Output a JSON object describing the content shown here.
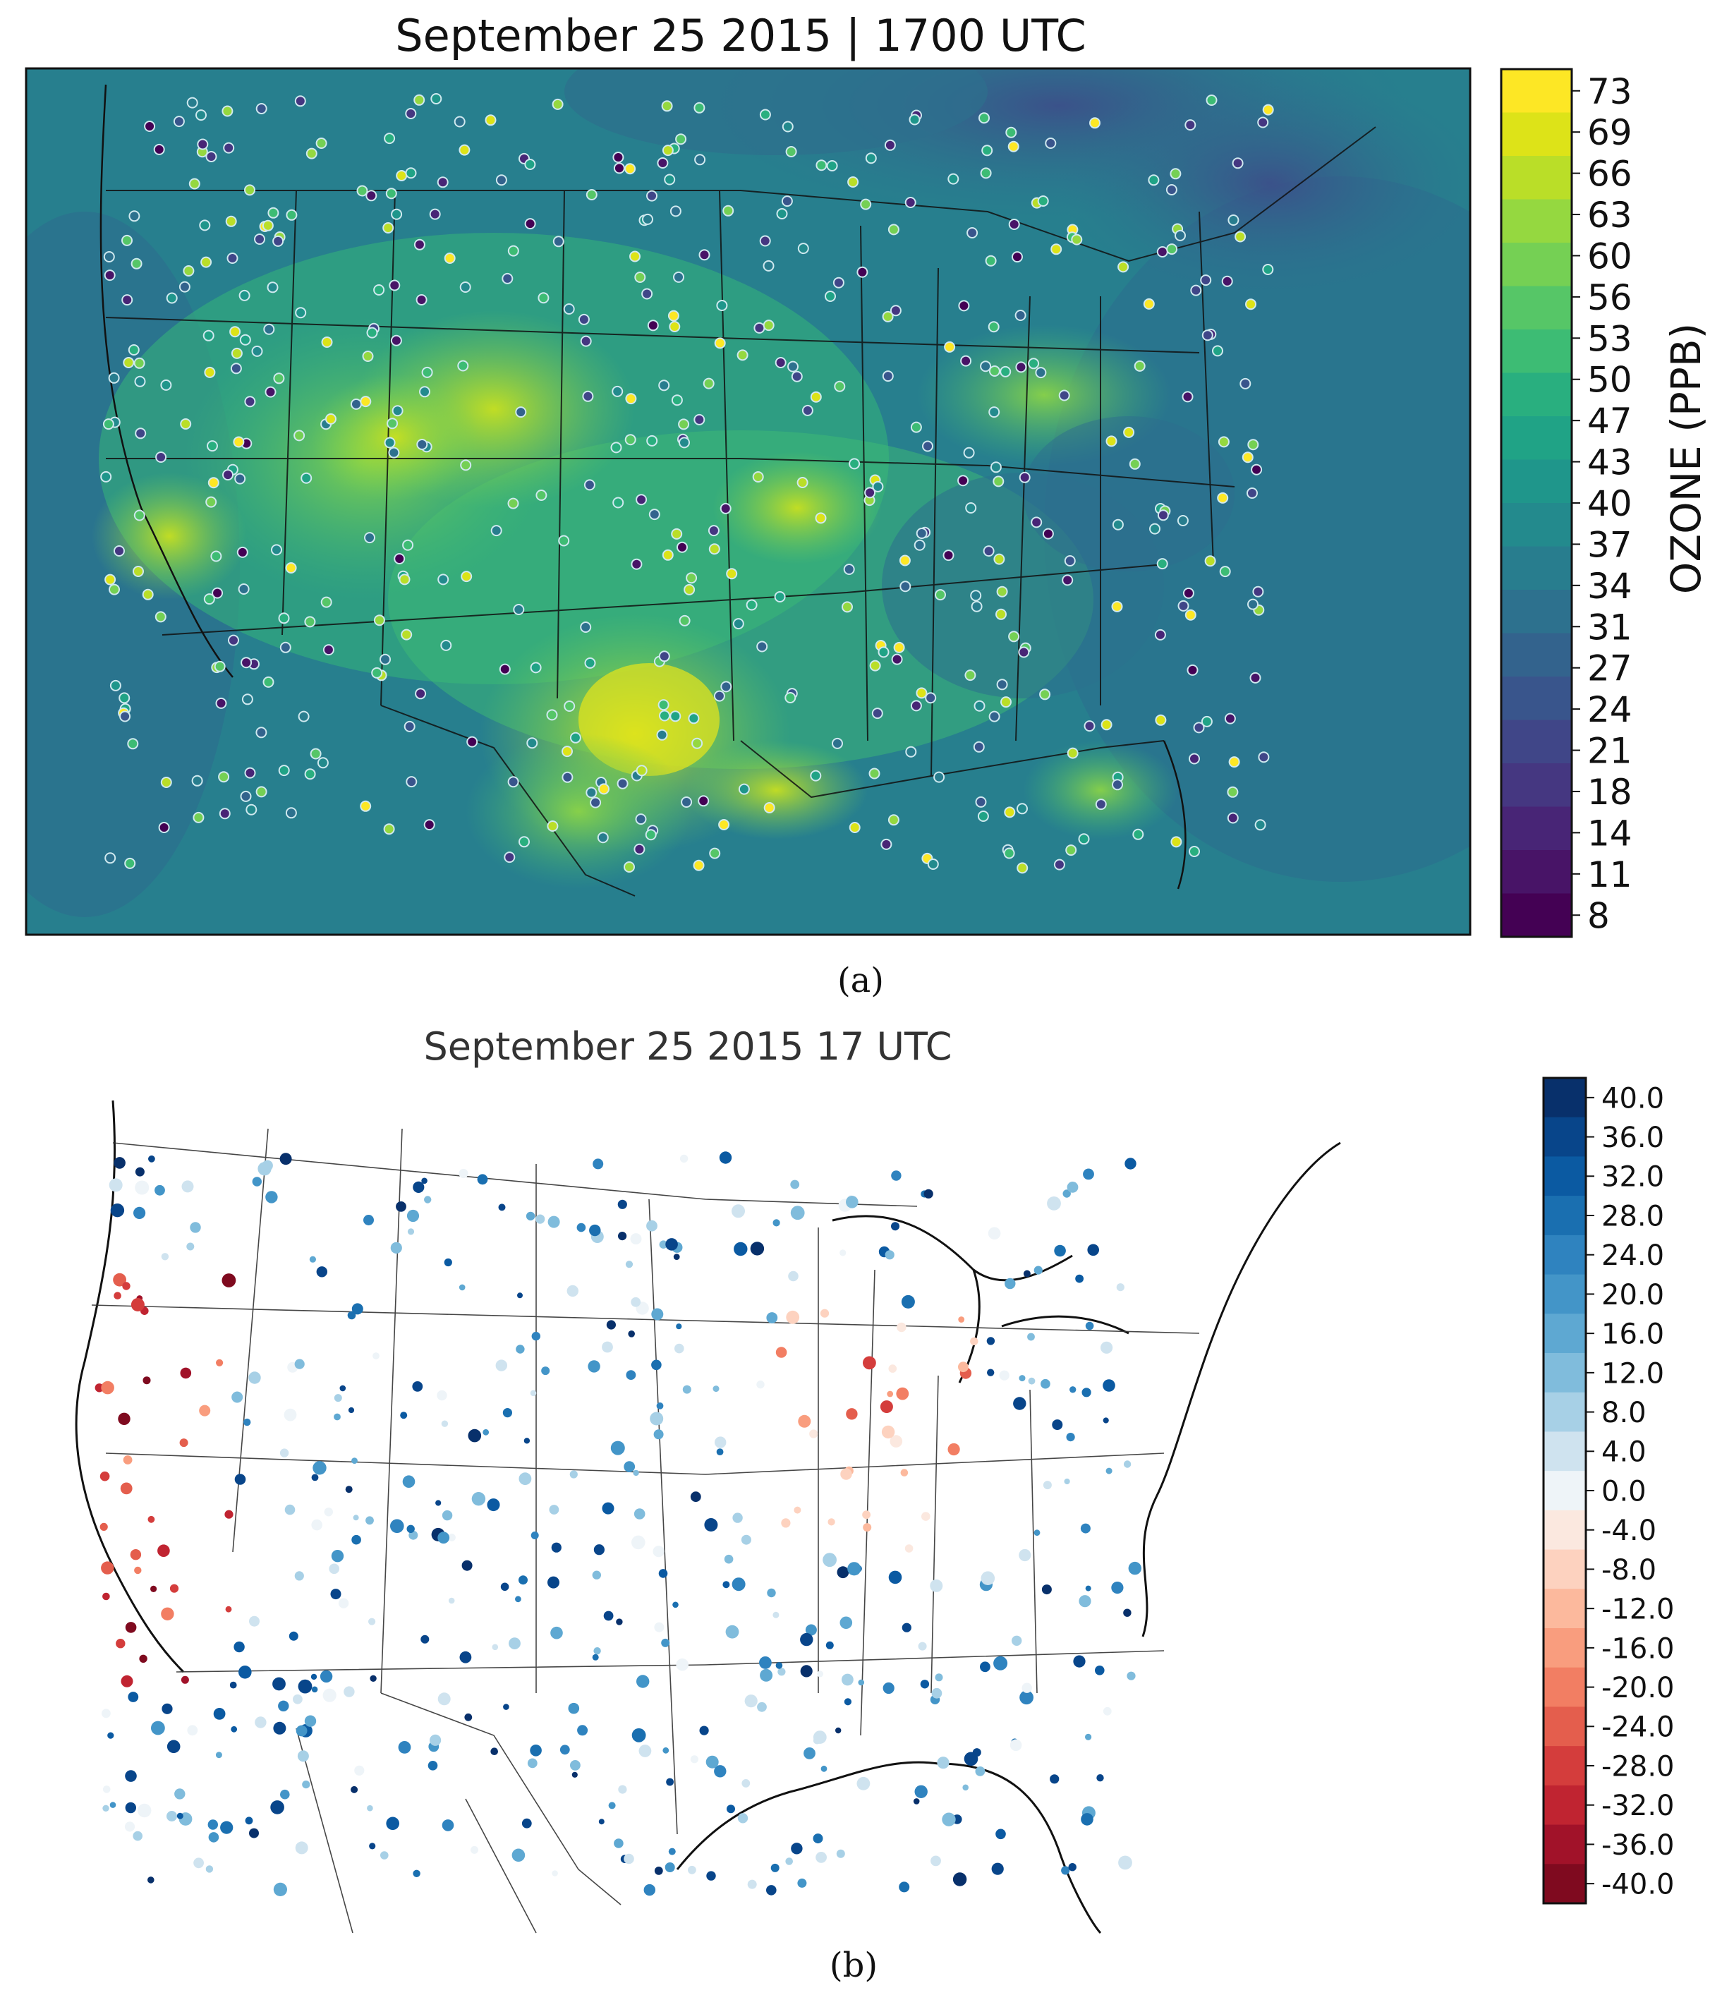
{
  "panel_a": {
    "title": "September 25 2015 | 1700 UTC",
    "caption": "(a)",
    "colorbar_label": "OZONE (PPB)",
    "ticks": [
      "73",
      "69",
      "66",
      "63",
      "60",
      "56",
      "53",
      "50",
      "47",
      "43",
      "40",
      "37",
      "34",
      "31",
      "27",
      "24",
      "21",
      "18",
      "14",
      "11",
      "8"
    ],
    "colors": [
      "#fde725",
      "#dde318",
      "#bade28",
      "#95d840",
      "#75d054",
      "#56c667",
      "#3dbc74",
      "#29af7f",
      "#20a386",
      "#1f968b",
      "#238a8d",
      "#287d8e",
      "#2d718e",
      "#33638d",
      "#39558c",
      "#404688",
      "#453781",
      "#482576",
      "#481467",
      "#440154"
    ]
  },
  "panel_b": {
    "title": "September 25 2015 17 UTC",
    "caption": "(b)",
    "ticks": [
      "40.0",
      "36.0",
      "32.0",
      "28.0",
      "24.0",
      "20.0",
      "16.0",
      "12.0",
      "8.0",
      "4.0",
      "0.0",
      "-4.0",
      "-8.0",
      "-12.0",
      "-16.0",
      "-20.0",
      "-24.0",
      "-28.0",
      "-32.0",
      "-36.0",
      "-40.0"
    ],
    "colors": [
      "#08306b",
      "#08458a",
      "#0b5aa2",
      "#1a6fb0",
      "#2f83bf",
      "#4395c8",
      "#5ea8d2",
      "#80bcdc",
      "#a7d0e6",
      "#cfe3ef",
      "#eef4f8",
      "#fbe8df",
      "#fdd2bf",
      "#fcb99d",
      "#f99d7e",
      "#f27e63",
      "#e45e4d",
      "#d43d3c",
      "#c02431",
      "#a11229",
      "#7f0a1f"
    ]
  }
}
